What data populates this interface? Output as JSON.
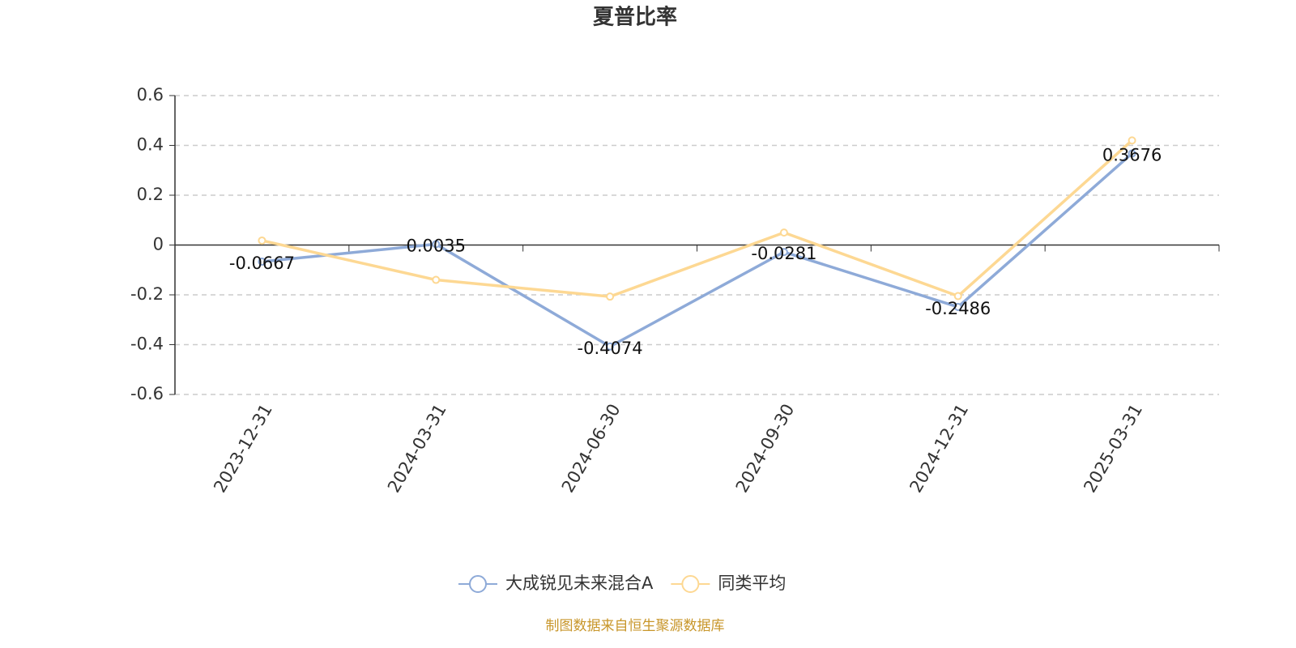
{
  "chart_data": {
    "type": "line",
    "title": "夏普比率",
    "categories": [
      "2023-12-31",
      "2024-03-31",
      "2024-06-30",
      "2024-09-30",
      "2024-12-31",
      "2025-03-31"
    ],
    "series": [
      {
        "name": "大成锐见未来混合A",
        "color": "#8eaad8",
        "values": [
          -0.0667,
          0.0035,
          -0.4074,
          -0.0281,
          -0.2486,
          0.3676
        ],
        "show_labels": true
      },
      {
        "name": "同类平均",
        "color": "#fdd893",
        "values": [
          0.018,
          -0.14,
          -0.207,
          0.05,
          -0.205,
          0.42
        ],
        "show_labels": false
      }
    ],
    "ylim": [
      -0.6,
      0.6
    ],
    "yticks": [
      0.6,
      0.4,
      0.2,
      0,
      -0.2,
      -0.4,
      -0.6
    ],
    "grid": true,
    "legend": "bottom",
    "source": "制图数据来自恒生聚源数据库"
  }
}
